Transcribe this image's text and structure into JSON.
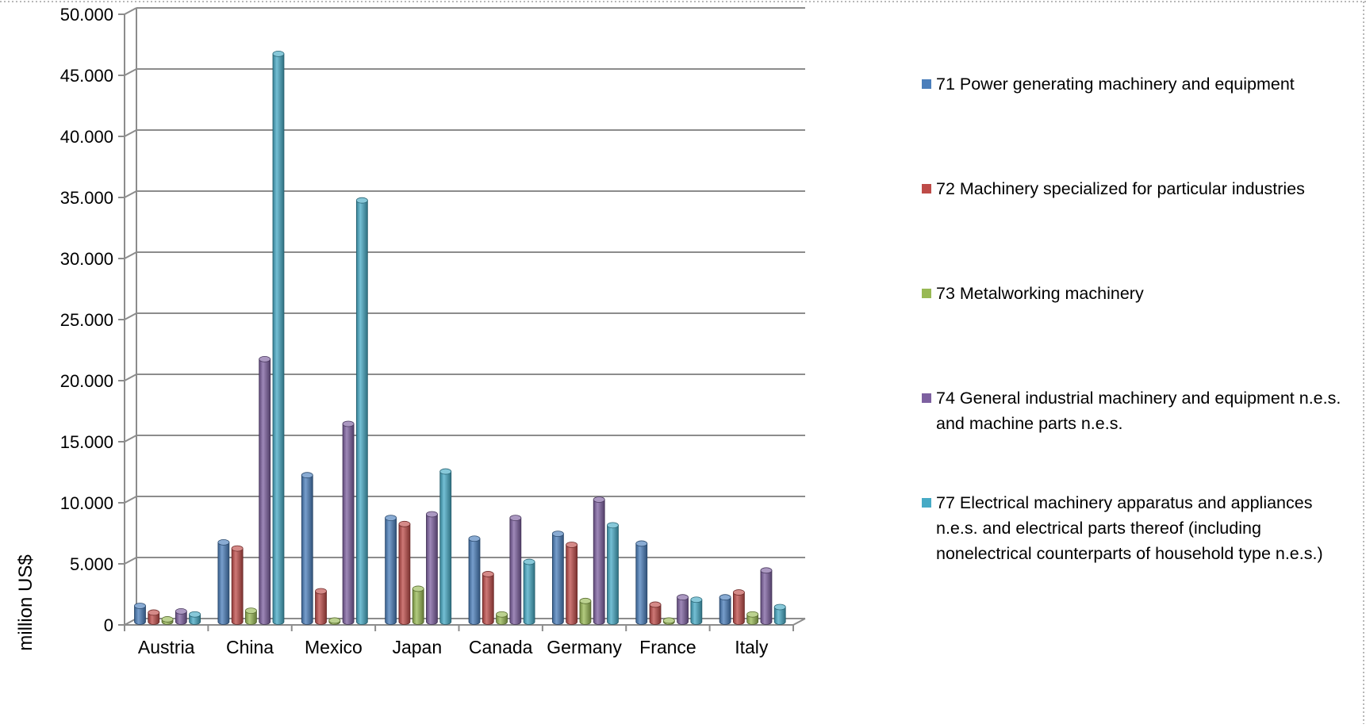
{
  "chart_data": {
    "type": "bar",
    "categories": [
      "Austria",
      "China",
      "Mexico",
      "Japan",
      "Canada",
      "Germany",
      "France",
      "Italy"
    ],
    "series": [
      {
        "name": "71 Power generating machinery and equipment",
        "color": "#4a7ebb",
        "values": [
          1300,
          6500,
          12000,
          8500,
          6800,
          7200,
          6400,
          2000
        ]
      },
      {
        "name": "72 Machinery specialized for particular industries",
        "color": "#be4b48",
        "values": [
          750,
          6000,
          2500,
          8000,
          3900,
          6300,
          1400,
          2400
        ]
      },
      {
        "name": "73 Metalworking machinery",
        "color": "#98b954",
        "values": [
          200,
          900,
          100,
          2700,
          600,
          1700,
          100,
          600
        ]
      },
      {
        "name": "74 General industrial machinery and equipment n.e.s. and machine parts n.e.s.",
        "color": "#7d60a0",
        "values": [
          850,
          21500,
          16200,
          8800,
          8500,
          10000,
          2000,
          4200
        ]
      },
      {
        "name": "77 Electrical machinery apparatus and appliances n.e.s. and electrical parts thereof (including nonelectrical counterparts of household type n.e.s.)",
        "color": "#46aac5",
        "values": [
          600,
          46500,
          34500,
          12300,
          4900,
          7900,
          1800,
          1200
        ]
      }
    ],
    "ylabel": "million US$",
    "ylim": [
      0,
      50000
    ],
    "yticks": [
      0,
      5000,
      10000,
      15000,
      20000,
      25000,
      30000,
      35000,
      40000,
      45000,
      50000
    ],
    "ytick_labels": [
      "0",
      "5.000",
      "10.000",
      "15.000",
      "20.000",
      "25.000",
      "30.000",
      "35.000",
      "40.000",
      "45.000",
      "50.000"
    ],
    "grid": true,
    "legend_position": "right",
    "style": "3d-cylinder"
  }
}
